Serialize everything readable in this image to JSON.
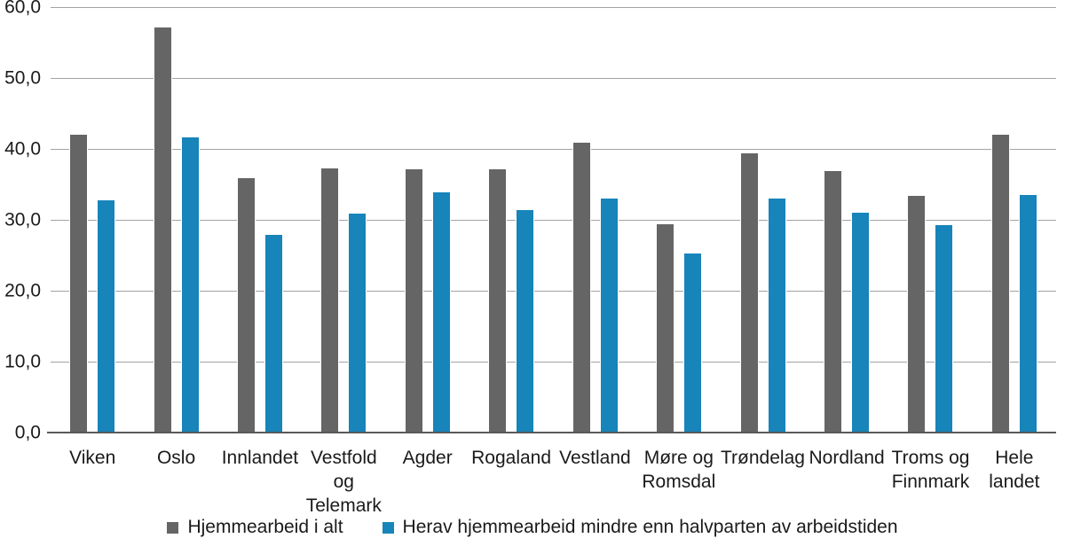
{
  "chart_data": {
    "type": "bar",
    "title": "",
    "xlabel": "",
    "ylabel": "",
    "categories": [
      "Viken",
      "Oslo",
      "Innlandet",
      "Vestfold og Telemark",
      "Agder",
      "Rogaland",
      "Vestland",
      "Møre og Romsdal",
      "Trøndelag",
      "Nordland",
      "Troms og Finnmark",
      "Hele landet"
    ],
    "series": [
      {
        "name": "Hjemmearbeid i alt",
        "color": "#656565",
        "values": [
          42.0,
          57.1,
          35.9,
          37.2,
          37.1,
          37.1,
          40.9,
          29.4,
          39.4,
          36.9,
          33.4,
          42.0
        ]
      },
      {
        "name": "Herav hjemmearbeid mindre enn halvparten av arbeidstiden",
        "color": "#1784ba",
        "values": [
          32.8,
          41.6,
          27.9,
          30.9,
          33.9,
          31.4,
          33.0,
          25.3,
          33.0,
          31.0,
          29.2,
          33.5
        ]
      }
    ],
    "ylim": [
      0,
      60
    ],
    "ytick_step": 10,
    "yticks": [
      {
        "value": 0,
        "label": "0,0"
      },
      {
        "value": 10,
        "label": "10,0"
      },
      {
        "value": 20,
        "label": "20,0"
      },
      {
        "value": 30,
        "label": "30,0"
      },
      {
        "value": 40,
        "label": "40,0"
      },
      {
        "value": 50,
        "label": "50,0"
      },
      {
        "value": 60,
        "label": "60,0"
      }
    ],
    "grid": true,
    "legend_position": "bottom"
  },
  "colors": {
    "background": "#ffffff",
    "grid": "#a3a3a3",
    "axis_line": "#595959",
    "text": "#1a1a1a",
    "series_gray": "#656565",
    "series_blue": "#1784ba"
  }
}
